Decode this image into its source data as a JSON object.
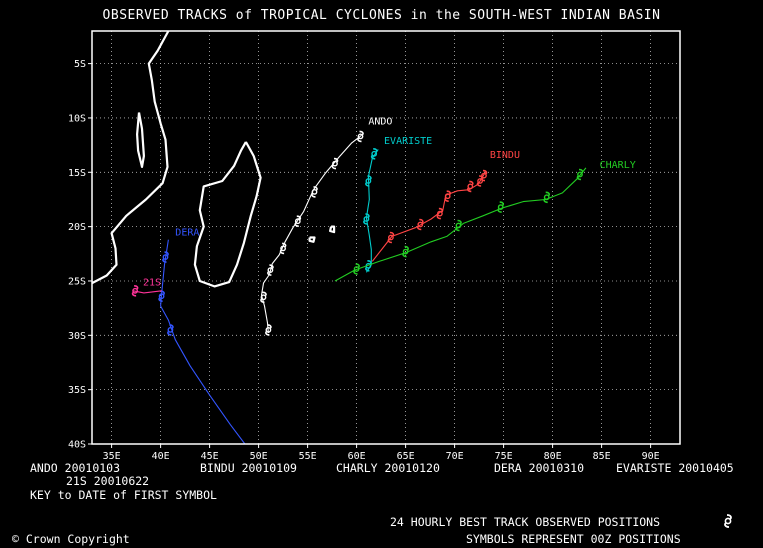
{
  "title": "OBSERVED TRACKS of TROPICAL CYCLONES in the SOUTH-WEST INDIAN BASIN",
  "map": {
    "lon_range": [
      33,
      93
    ],
    "lat_range": [
      -40,
      -2
    ],
    "grid": "dotted",
    "lat_ticks": [
      {
        "value": -5,
        "label": "5S"
      },
      {
        "value": -10,
        "label": "10S"
      },
      {
        "value": -15,
        "label": "15S"
      },
      {
        "value": -20,
        "label": "20S"
      },
      {
        "value": -25,
        "label": "25S"
      },
      {
        "value": -30,
        "label": "30S"
      },
      {
        "value": -35,
        "label": "35S"
      },
      {
        "value": -40,
        "label": "40S"
      }
    ],
    "lon_ticks": [
      {
        "value": 35,
        "label": "35E"
      },
      {
        "value": 40,
        "label": "40E"
      },
      {
        "value": 45,
        "label": "45E"
      },
      {
        "value": 50,
        "label": "50E"
      },
      {
        "value": 55,
        "label": "55E"
      },
      {
        "value": 60,
        "label": "60E"
      },
      {
        "value": 65,
        "label": "65E"
      },
      {
        "value": 70,
        "label": "70E"
      },
      {
        "value": 75,
        "label": "75E"
      },
      {
        "value": 80,
        "label": "80E"
      },
      {
        "value": 85,
        "label": "85E"
      },
      {
        "value": 90,
        "label": "90E"
      }
    ],
    "land": [
      [
        [
          33,
          -25.2
        ],
        [
          34.5,
          -24.5
        ],
        [
          35.5,
          -23.5
        ],
        [
          35.4,
          -22
        ],
        [
          35,
          -20.6
        ],
        [
          36.5,
          -19
        ],
        [
          38.5,
          -17.5
        ],
        [
          40.2,
          -16
        ],
        [
          40.7,
          -14.5
        ],
        [
          40.5,
          -12
        ],
        [
          40,
          -10.5
        ],
        [
          39.4,
          -8.5
        ],
        [
          39.1,
          -6.5
        ],
        [
          38.8,
          -5
        ],
        [
          39.7,
          -3.8
        ],
        [
          40.8,
          -2
        ]
      ],
      [
        [
          48.7,
          -12.2
        ],
        [
          49.5,
          -13.5
        ],
        [
          50.2,
          -15.5
        ],
        [
          49.8,
          -17.2
        ],
        [
          49.2,
          -19
        ],
        [
          48.5,
          -21.5
        ],
        [
          47.8,
          -23.5
        ],
        [
          47,
          -25.1
        ],
        [
          45.5,
          -25.5
        ],
        [
          44,
          -25
        ],
        [
          43.5,
          -23.5
        ],
        [
          43.7,
          -21.8
        ],
        [
          44.4,
          -20
        ],
        [
          44,
          -18.5
        ],
        [
          44.4,
          -16.3
        ],
        [
          46.3,
          -15.8
        ],
        [
          47.5,
          -14.4
        ],
        [
          48.2,
          -13
        ],
        [
          48.7,
          -12.2
        ]
      ],
      [
        [
          37.8,
          -9.5
        ],
        [
          37.6,
          -11.5
        ],
        [
          37.7,
          -13
        ],
        [
          38.1,
          -14.5
        ],
        [
          38.3,
          -13.5
        ],
        [
          38.1,
          -11
        ],
        [
          37.8,
          -9.5
        ]
      ],
      [
        [
          55.2,
          -21.0
        ],
        [
          55.7,
          -21.0
        ],
        [
          55.6,
          -21.4
        ],
        [
          55.2,
          -21.3
        ],
        [
          55.2,
          -21.0
        ]
      ],
      [
        [
          57.4,
          -20.0
        ],
        [
          57.7,
          -20.0
        ],
        [
          57.7,
          -20.5
        ],
        [
          57.3,
          -20.4
        ],
        [
          57.4,
          -20.0
        ]
      ]
    ],
    "track_symbol": "cyclone-symbol"
  },
  "storms": [
    {
      "name": "ANDO",
      "date": "20010103",
      "color": "#ffffff",
      "track": [
        [
          51,
          -29.8
        ],
        [
          50.9,
          -28.8
        ],
        [
          50.6,
          -27.3
        ],
        [
          50.3,
          -26.3
        ],
        [
          50.5,
          -25.2
        ],
        [
          51.1,
          -24.4
        ],
        [
          51.4,
          -23.4
        ],
        [
          52.1,
          -22.6
        ],
        [
          52.7,
          -21.4
        ],
        [
          53.5,
          -20.1
        ],
        [
          54.6,
          -18.6
        ],
        [
          55.6,
          -16.6
        ],
        [
          56.8,
          -15.1
        ],
        [
          58.2,
          -13.6
        ],
        [
          59.5,
          -12.3
        ],
        [
          60.5,
          -11.6
        ]
      ],
      "symbols": [
        [
          51,
          -29.5
        ],
        [
          50.5,
          -26.5
        ],
        [
          51.2,
          -24
        ],
        [
          52.5,
          -22
        ],
        [
          54,
          -19.5
        ],
        [
          55.7,
          -16.8
        ],
        [
          57.8,
          -14.2
        ],
        [
          60.4,
          -11.7
        ]
      ],
      "label_at": [
        61.2,
        -10.6
      ]
    },
    {
      "name": "EVARISTE",
      "date": "20010405",
      "color": "#00cccc",
      "track": [
        [
          62.2,
          -12.9
        ],
        [
          61.6,
          -13.7
        ],
        [
          61.2,
          -15.4
        ],
        [
          61.3,
          -17.5
        ],
        [
          61,
          -19.2
        ],
        [
          61.3,
          -20.8
        ],
        [
          61.5,
          -22.1
        ],
        [
          61.5,
          -23.5
        ],
        [
          61,
          -24.2
        ]
      ],
      "symbols": [
        [
          61.8,
          -13.3
        ],
        [
          61.2,
          -15.8
        ],
        [
          61,
          -19.3
        ],
        [
          61.2,
          -23.6
        ]
      ],
      "label_at": [
        62.8,
        -12.4
      ]
    },
    {
      "name": "BINDU",
      "date": "20010109",
      "color": "#ff4444",
      "track": [
        [
          61.6,
          -23.2
        ],
        [
          63.6,
          -20.9
        ],
        [
          66,
          -20.1
        ],
        [
          67.6,
          -19.3
        ],
        [
          68.8,
          -18.5
        ],
        [
          69.1,
          -17.1
        ],
        [
          70.3,
          -16.7
        ],
        [
          71.5,
          -16.6
        ],
        [
          72.4,
          -16.1
        ],
        [
          73.2,
          -14.9
        ]
      ],
      "symbols": [
        [
          63.5,
          -21
        ],
        [
          66.5,
          -19.8
        ],
        [
          68.5,
          -18.8
        ],
        [
          69.3,
          -17.2
        ],
        [
          71.6,
          -16.3
        ],
        [
          72.6,
          -15.8
        ],
        [
          73,
          -15.3
        ]
      ],
      "label_at": [
        73.6,
        -13.7
      ]
    },
    {
      "name": "CHARLY",
      "date": "20010120",
      "color": "#22cc22",
      "track": [
        [
          57.8,
          -25.0
        ],
        [
          59.8,
          -24.0
        ],
        [
          62.3,
          -23.2
        ],
        [
          65,
          -22.4
        ],
        [
          67.6,
          -21.4
        ],
        [
          69.2,
          -20.9
        ],
        [
          70.9,
          -19.7
        ],
        [
          72.9,
          -19.0
        ],
        [
          74.8,
          -18.3
        ],
        [
          77,
          -17.7
        ],
        [
          79.3,
          -17.5
        ],
        [
          81,
          -16.9
        ],
        [
          82.5,
          -15.6
        ],
        [
          83.4,
          -14.6
        ]
      ],
      "symbols": [
        [
          60,
          -23.9
        ],
        [
          65,
          -22.3
        ],
        [
          70.4,
          -19.9
        ],
        [
          74.7,
          -18.2
        ],
        [
          79.4,
          -17.3
        ],
        [
          82.8,
          -15.2
        ]
      ],
      "label_at": [
        84.8,
        -14.6
      ]
    },
    {
      "name": "DERA",
      "date": "20010310",
      "color": "#3355ff",
      "track": [
        [
          40.8,
          -21.2
        ],
        [
          40.4,
          -23.5
        ],
        [
          40.1,
          -26.2
        ],
        [
          40,
          -27.3
        ],
        [
          40.8,
          -28.6
        ],
        [
          41.5,
          -30.4
        ],
        [
          43,
          -32.8
        ],
        [
          45,
          -35.5
        ],
        [
          47.1,
          -38.2
        ],
        [
          48.6,
          -40
        ]
      ],
      "symbols": [
        [
          40.5,
          -22.8
        ],
        [
          40.1,
          -26.4
        ],
        [
          41,
          -29.5
        ]
      ],
      "label_at": [
        41.5,
        -20.8
      ]
    },
    {
      "name": "21S",
      "date": "20010622",
      "color": "#ff3399",
      "track": [
        [
          40.1,
          -25.9
        ],
        [
          38.3,
          -26.1
        ],
        [
          37.2,
          -25.9
        ]
      ],
      "symbols": [
        [
          37.4,
          -25.9
        ]
      ],
      "label_at": [
        38.2,
        -25.4
      ]
    }
  ],
  "key": {
    "row1": [
      {
        "name": "ANDO",
        "date": "20010103"
      },
      {
        "name": "BINDU",
        "date": "20010109"
      },
      {
        "name": "CHARLY",
        "date": "20010120"
      },
      {
        "name": "DERA",
        "date": "20010310"
      },
      {
        "name": "EVARISTE",
        "date": "20010405"
      }
    ],
    "row2": {
      "name": "21S",
      "date": "20010622"
    },
    "note": "KEY to DATE of FIRST SYMBOL"
  },
  "footer": {
    "copyright_symbol": "©",
    "copyright": "Crown Copyright",
    "positions_line1": "24 HOURLY BEST TRACK OBSERVED POSITIONS",
    "positions_line2": "SYMBOLS REPRESENT 00Z POSITIONS"
  }
}
